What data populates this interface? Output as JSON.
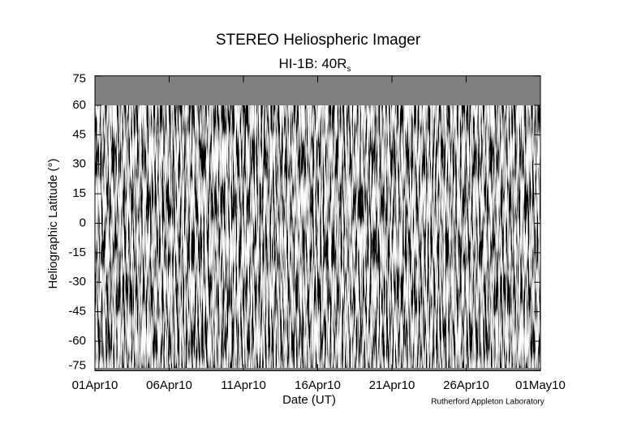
{
  "chart_data": {
    "type": "image",
    "title": "STEREO Heliospheric Imager",
    "subtitle": "HI-1B: 40R",
    "subtitle_subscript": "s",
    "xlabel": "Date (UT)",
    "ylabel": "Heliographic Latitude (°)",
    "annotation": "Rutherford Appleton Laboratory",
    "xlim": [
      "2010-04-01",
      "2010-05-01"
    ],
    "xticks": [
      {
        "value": "2010-04-01",
        "label": "01Apr10"
      },
      {
        "value": "2010-04-06",
        "label": "06Apr10"
      },
      {
        "value": "2010-04-11",
        "label": "11Apr10"
      },
      {
        "value": "2010-04-16",
        "label": "16Apr10"
      },
      {
        "value": "2010-04-21",
        "label": "21Apr10"
      },
      {
        "value": "2010-04-26",
        "label": "26Apr10"
      },
      {
        "value": "2010-05-01",
        "label": "01May10"
      }
    ],
    "ylim": [
      -75,
      75
    ],
    "yticks": [
      75,
      60,
      45,
      30,
      15,
      0,
      -15,
      -30,
      -45,
      -60,
      -75
    ]
  }
}
